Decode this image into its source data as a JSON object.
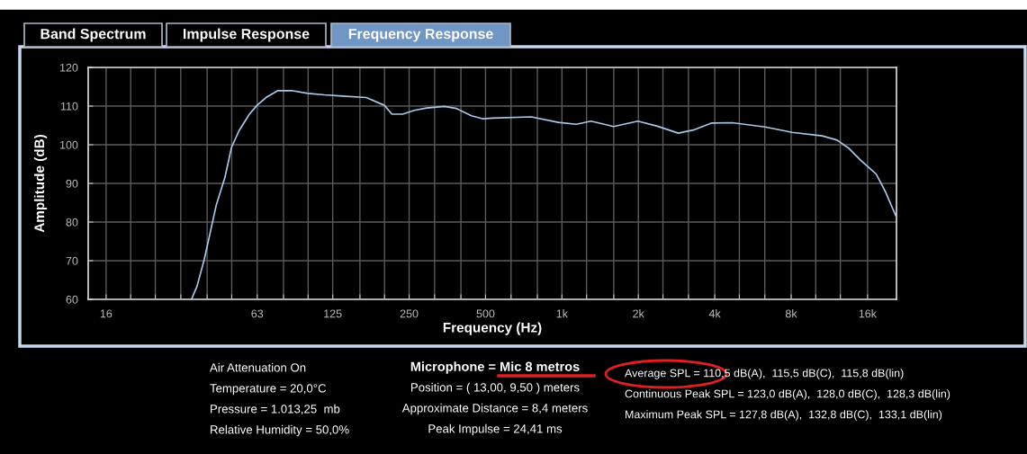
{
  "chart_data": {
    "type": "line",
    "xlabel": "Frequency (Hz)",
    "ylabel": "Amplitude (dB)",
    "log": "x",
    "grid": true,
    "legend": false,
    "marker": "none",
    "line_style": "solid",
    "xlim": [
      13.6,
      20800
    ],
    "ylim": [
      60,
      120
    ],
    "yticks": [
      60,
      70,
      80,
      90,
      100,
      110,
      120
    ],
    "xticks": [
      16,
      {
        "value": 20,
        "label": null
      },
      {
        "value": 25,
        "label": null
      },
      {
        "value": 31.5,
        "label": null
      },
      {
        "value": 40,
        "label": null
      },
      {
        "value": 50,
        "label": null
      },
      63,
      {
        "value": 80,
        "label": null
      },
      {
        "value": 100,
        "label": null
      },
      125,
      {
        "value": 160,
        "label": null
      },
      {
        "value": 200,
        "label": null
      },
      250,
      {
        "value": 315,
        "label": null
      },
      {
        "value": 400,
        "label": null
      },
      500,
      {
        "value": 630,
        "label": null
      },
      {
        "value": 800,
        "label": null
      },
      {
        "value": 1000,
        "label": "1k"
      },
      {
        "value": 1250,
        "label": null
      },
      {
        "value": 1600,
        "label": null
      },
      {
        "value": 2000,
        "label": "2k"
      },
      {
        "value": 2500,
        "label": null
      },
      {
        "value": 3150,
        "label": null
      },
      {
        "value": 4000,
        "label": "4k"
      },
      {
        "value": 5000,
        "label": null
      },
      {
        "value": 6300,
        "label": null
      },
      {
        "value": 8000,
        "label": "8k"
      },
      {
        "value": 10000,
        "label": null
      },
      {
        "value": 12500,
        "label": null
      },
      {
        "value": 16000,
        "label": "16k"
      }
    ],
    "series": [
      {
        "color": "#a8c8e8",
        "x": [
          34.7,
          36.5,
          39.0,
          43.5,
          47.0,
          49.9,
          53.4,
          58.7,
          62.9,
          68.2,
          76.0,
          85.9,
          99.8,
          115.9,
          136.4,
          169.5,
          199.7,
          213.9,
          235.4,
          262.1,
          293.1,
          344.2,
          383.7,
          439.7,
          489.4,
          531.5,
          757,
          967,
          1139,
          1302,
          1599,
          1990,
          2378,
          2874,
          3290,
          3875,
          4682,
          6326,
          8074,
          10602,
          12144,
          13540,
          15075,
          17300,
          18770,
          20650
        ],
        "values": [
          60,
          63.4,
          70.4,
          84.5,
          91.5,
          99.3,
          103.6,
          107.9,
          110.2,
          112.2,
          114.0,
          114.0,
          113.3,
          112.9,
          112.6,
          112.2,
          110.2,
          107.9,
          107.9,
          108.9,
          109.5,
          109.9,
          109.4,
          107.5,
          106.7,
          106.9,
          107.2,
          105.8,
          105.3,
          106.1,
          104.7,
          106.1,
          104.8,
          103.0,
          103.8,
          105.6,
          105.7,
          104.6,
          103.2,
          102.3,
          101.2,
          99.0,
          95.9,
          92.4,
          88.0,
          81.7
        ]
      }
    ],
    "annotations": [
      "Band Spectrum",
      "Impulse Response",
      "Frequency Response",
      "Air Attenuation On",
      "Temperature = 20,0°C",
      "Pressure = 1.013,25  mb",
      "Relative Humidity = 50,0%",
      "Microphone = Mic 8 metros",
      "Position = ( 13,00, 9,50 ) meters",
      "Approximate Distance = 8,4 meters",
      "Peak Impulse = 24,41 ms",
      "Average SPL = 110,5 dB(A),  115,5 dB(C),  115,8 dB(lin)",
      "Continuous Peak SPL = 123,0 dB(A),  128,0 dB(C),  128,3 dB(lin)",
      "Maximum Peak SPL = 127,8 dB(A),  132,8 dB(C),  133,1 dB(lin)"
    ]
  }
}
